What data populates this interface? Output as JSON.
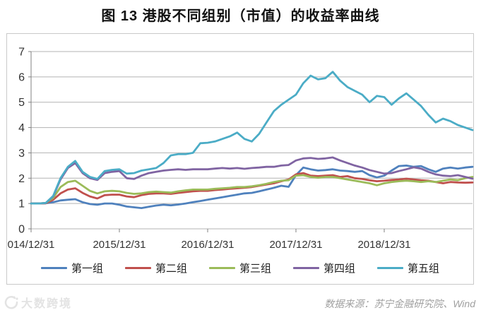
{
  "title": "图 13  港股不同组别（市值）的收益率曲线",
  "footer": {
    "watermark": "大数跨境",
    "source": "数据来源：苏宁金融研究院、Wind"
  },
  "colors": {
    "grid": "#b3b3b3",
    "axis": "#808080",
    "axis_text": "#333333",
    "border": "#c9c9c9",
    "title_text": "#111111",
    "source_text": "#a0a0a0",
    "watermark_text": "#e3e3e3"
  },
  "chart_data": {
    "type": "line",
    "title": "图 13  港股不同组别（市值）的收益率曲线",
    "xlabel": "",
    "ylabel": "",
    "ylim": [
      0,
      7
    ],
    "y_ticks": [
      0,
      1,
      2,
      3,
      4,
      5,
      6,
      7
    ],
    "grid": "horizontal",
    "legend_position": "bottom",
    "x_start": "2014/12/31",
    "x_frequency": "monthly",
    "x_months_total": 60,
    "x_tick_labels": [
      "014/12/31",
      "2015/12/31",
      "2016/12/31",
      "2017/12/31",
      "2018/12/31"
    ],
    "x_tick_month_index": [
      0,
      12,
      24,
      36,
      48
    ],
    "series": [
      {
        "name": "第一组",
        "color": "#4F81BD",
        "values": [
          1.0,
          1.0,
          1.01,
          1.05,
          1.12,
          1.15,
          1.17,
          1.05,
          0.98,
          0.95,
          1.0,
          1.0,
          0.95,
          0.88,
          0.85,
          0.82,
          0.87,
          0.92,
          0.95,
          0.93,
          0.96,
          1.0,
          1.05,
          1.1,
          1.15,
          1.2,
          1.25,
          1.3,
          1.35,
          1.4,
          1.42,
          1.48,
          1.55,
          1.62,
          1.7,
          1.66,
          2.12,
          2.42,
          2.35,
          2.3,
          2.32,
          2.35,
          2.3,
          2.28,
          2.25,
          2.28,
          2.12,
          2.03,
          2.1,
          2.3,
          2.48,
          2.5,
          2.45,
          2.48,
          2.35,
          2.25,
          2.38,
          2.42,
          2.38,
          2.42,
          2.45
        ]
      },
      {
        "name": "第二组",
        "color": "#C0504D",
        "values": [
          1.0,
          1.0,
          1.01,
          1.15,
          1.4,
          1.55,
          1.6,
          1.42,
          1.28,
          1.2,
          1.33,
          1.35,
          1.35,
          1.28,
          1.25,
          1.33,
          1.38,
          1.4,
          1.4,
          1.38,
          1.42,
          1.45,
          1.48,
          1.5,
          1.5,
          1.53,
          1.55,
          1.58,
          1.6,
          1.62,
          1.65,
          1.7,
          1.75,
          1.8,
          1.88,
          1.95,
          2.15,
          2.2,
          2.1,
          2.08,
          2.1,
          2.12,
          2.05,
          2.08,
          2.0,
          1.97,
          1.92,
          1.88,
          1.9,
          1.93,
          1.95,
          1.98,
          1.95,
          1.92,
          1.9,
          1.85,
          1.8,
          1.85,
          1.83,
          1.82,
          1.83
        ]
      },
      {
        "name": "第三组",
        "color": "#9BBB59",
        "values": [
          1.0,
          1.0,
          1.02,
          1.22,
          1.65,
          1.85,
          1.9,
          1.7,
          1.5,
          1.4,
          1.48,
          1.5,
          1.48,
          1.42,
          1.38,
          1.4,
          1.45,
          1.47,
          1.45,
          1.43,
          1.48,
          1.52,
          1.55,
          1.55,
          1.55,
          1.58,
          1.6,
          1.62,
          1.65,
          1.65,
          1.68,
          1.72,
          1.78,
          1.85,
          1.9,
          1.92,
          2.1,
          2.12,
          2.05,
          2.02,
          2.05,
          2.05,
          2.0,
          1.95,
          1.9,
          1.85,
          1.8,
          1.72,
          1.8,
          1.85,
          1.88,
          1.9,
          1.88,
          1.85,
          1.88,
          1.85,
          1.9,
          1.95,
          1.92,
          2.0,
          2.05
        ]
      },
      {
        "name": "第四组",
        "color": "#8064A2",
        "values": [
          1.0,
          1.0,
          1.02,
          1.28,
          1.95,
          2.4,
          2.6,
          2.2,
          2.0,
          1.93,
          2.2,
          2.25,
          2.28,
          2.0,
          1.97,
          2.1,
          2.2,
          2.25,
          2.3,
          2.33,
          2.35,
          2.33,
          2.35,
          2.35,
          2.35,
          2.38,
          2.4,
          2.38,
          2.4,
          2.37,
          2.4,
          2.42,
          2.45,
          2.45,
          2.5,
          2.52,
          2.7,
          2.78,
          2.8,
          2.76,
          2.78,
          2.82,
          2.7,
          2.6,
          2.5,
          2.42,
          2.32,
          2.25,
          2.18,
          2.2,
          2.28,
          2.35,
          2.43,
          2.38,
          2.25,
          2.15,
          2.1,
          2.08,
          2.12,
          2.05,
          1.98
        ]
      },
      {
        "name": "第五组",
        "color": "#4BACC6",
        "values": [
          1.0,
          1.0,
          1.02,
          1.3,
          2.0,
          2.45,
          2.68,
          2.25,
          2.05,
          1.97,
          2.28,
          2.33,
          2.35,
          2.18,
          2.2,
          2.3,
          2.35,
          2.4,
          2.6,
          2.9,
          2.95,
          2.95,
          3.0,
          3.38,
          3.4,
          3.45,
          3.55,
          3.65,
          3.8,
          3.55,
          3.45,
          3.75,
          4.2,
          4.65,
          4.9,
          5.1,
          5.3,
          5.75,
          6.05,
          5.9,
          5.95,
          6.2,
          5.85,
          5.6,
          5.45,
          5.3,
          5.0,
          5.25,
          5.2,
          4.9,
          5.15,
          5.35,
          5.1,
          4.85,
          4.5,
          4.2,
          4.35,
          4.25,
          4.1,
          4.0,
          3.9
        ]
      }
    ]
  }
}
